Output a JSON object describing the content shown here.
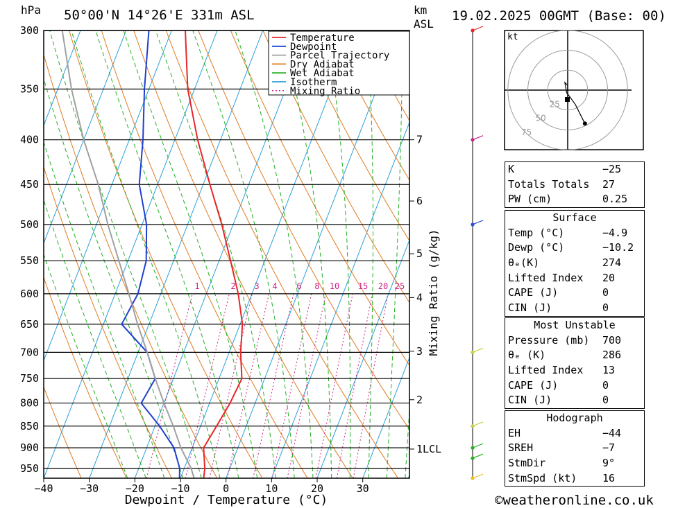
{
  "header": {
    "hpa_label": "hPa",
    "location": "50°00'N  14°26'E  331m  ASL",
    "km_label": "km",
    "asl_label": "ASL",
    "datetime": "19.02.2025  00GMT  (Base: 00)"
  },
  "legend": [
    {
      "label": "Temperature",
      "color": "#e8262a"
    },
    {
      "label": "Dewpoint",
      "color": "#1f3fd0"
    },
    {
      "label": "Parcel Trajectory",
      "color": "#a0a0a0"
    },
    {
      "label": "Dry Adiabat",
      "color": "#e07a20"
    },
    {
      "label": "Wet Adiabat",
      "color": "#22b022"
    },
    {
      "label": "Isotherm",
      "color": "#2a9fd8"
    },
    {
      "label": "Mixing Ratio",
      "color": "#d0208a"
    }
  ],
  "chart_data": {
    "type": "line",
    "title": "Skew-T log-P sounding",
    "xlabel": "Dewpoint / Temperature (°C)",
    "ylabel": "hPa",
    "secondary_ylabel": "Mixing Ratio (g/kg)",
    "pressure_levels": [
      300,
      350,
      400,
      450,
      500,
      550,
      600,
      650,
      700,
      750,
      800,
      850,
      900,
      950
    ],
    "x_ticks": [
      -40,
      -30,
      -20,
      -10,
      0,
      10,
      20,
      30
    ],
    "xlim": [
      -40,
      40
    ],
    "ylim": [
      975,
      300
    ],
    "km_ticks": [
      {
        "label": "7",
        "p": 400
      },
      {
        "label": "6",
        "p": 470
      },
      {
        "label": "5",
        "p": 540
      },
      {
        "label": "4",
        "p": 606
      },
      {
        "label": "3",
        "p": 698
      },
      {
        "label": "2",
        "p": 793
      },
      {
        "label": "1LCL",
        "p": 903
      }
    ],
    "mixing_ratio_labels": [
      "1",
      "2",
      "3",
      "4",
      "6",
      "8",
      "10",
      "15",
      "20",
      "25"
    ],
    "mixing_ratio_values": [
      1,
      2,
      3,
      4,
      6,
      8,
      10,
      15,
      20,
      25
    ],
    "series": [
      {
        "name": "Temperature",
        "points": [
          [
            975,
            -4.9
          ],
          [
            950,
            -5.5
          ],
          [
            900,
            -7.5
          ],
          [
            850,
            -6.5
          ],
          [
            800,
            -5.5
          ],
          [
            750,
            -5
          ],
          [
            700,
            -7.5
          ],
          [
            650,
            -9.5
          ],
          [
            600,
            -13
          ],
          [
            550,
            -17.5
          ],
          [
            500,
            -22.5
          ],
          [
            450,
            -28.5
          ],
          [
            400,
            -35
          ],
          [
            350,
            -41.5
          ],
          [
            300,
            -47
          ]
        ]
      },
      {
        "name": "Dewpoint",
        "points": [
          [
            975,
            -10.2
          ],
          [
            950,
            -11
          ],
          [
            900,
            -14
          ],
          [
            850,
            -19
          ],
          [
            800,
            -25
          ],
          [
            750,
            -24
          ],
          [
            700,
            -28
          ],
          [
            650,
            -36
          ],
          [
            600,
            -35
          ],
          [
            550,
            -36
          ],
          [
            500,
            -39
          ],
          [
            450,
            -44
          ],
          [
            400,
            -47
          ],
          [
            350,
            -51
          ],
          [
            300,
            -55
          ]
        ]
      },
      {
        "name": "Parcel Trajectory",
        "points": [
          [
            975,
            -7
          ],
          [
            950,
            -8.5
          ],
          [
            900,
            -12.5
          ],
          [
            850,
            -16
          ],
          [
            800,
            -20
          ],
          [
            750,
            -24
          ],
          [
            700,
            -28
          ],
          [
            650,
            -32.5
          ],
          [
            600,
            -37
          ],
          [
            550,
            -42
          ],
          [
            500,
            -47.5
          ],
          [
            450,
            -53
          ],
          [
            400,
            -60
          ],
          [
            350,
            -67
          ],
          [
            300,
            -74
          ]
        ]
      }
    ]
  },
  "hodograph": {
    "unit_label": "kt",
    "ring_labels": [
      "25",
      "50",
      "75"
    ],
    "ring_values": [
      25,
      50,
      75
    ],
    "points": [
      [
        0,
        0
      ],
      [
        0,
        5
      ],
      [
        -3,
        8
      ],
      [
        -1,
        -3
      ],
      [
        0,
        -4
      ],
      [
        8,
        -15
      ],
      [
        18,
        -35
      ]
    ]
  },
  "wind_profile": {
    "levels": [
      {
        "p": 300,
        "color": "#e8262a"
      },
      {
        "p": 400,
        "color": "#d0208a"
      },
      {
        "p": 500,
        "color": "#2a4fd8"
      },
      {
        "p": 700,
        "color": "#c8d040"
      },
      {
        "p": 850,
        "color": "#c8d040"
      },
      {
        "p": 900,
        "color": "#22b022"
      },
      {
        "p": 925,
        "color": "#22b022"
      },
      {
        "p": 975,
        "color": "#e8c020"
      }
    ]
  },
  "indices": {
    "k_label": "K",
    "k_value": "-25",
    "tt_label": "Totals Totals",
    "tt_value": "27",
    "pw_label": "PW (cm)",
    "pw_value": "0.25"
  },
  "surface": {
    "title": "Surface",
    "rows": [
      {
        "label": "Temp (°C)",
        "value": "-4.9"
      },
      {
        "label": "Dewp (°C)",
        "value": "-10.2"
      },
      {
        "label": "θE(K)",
        "value": "274"
      },
      {
        "label": "Lifted Index",
        "value": "20"
      },
      {
        "label": "CAPE (J)",
        "value": "0"
      },
      {
        "label": "CIN (J)",
        "value": "0"
      }
    ]
  },
  "most_unstable": {
    "title": "Most Unstable",
    "rows": [
      {
        "label": "Pressure (mb)",
        "value": "700"
      },
      {
        "label": "θE (K)",
        "value": "286"
      },
      {
        "label": "Lifted Index",
        "value": "13"
      },
      {
        "label": "CAPE (J)",
        "value": "0"
      },
      {
        "label": "CIN (J)",
        "value": "0"
      }
    ]
  },
  "hodograph_table": {
    "title": "Hodograph",
    "rows": [
      {
        "label": "EH",
        "value": "-44"
      },
      {
        "label": "SREH",
        "value": "-7"
      },
      {
        "label": "StmDir",
        "value": "9°"
      },
      {
        "label": "StmSpd (kt)",
        "value": "16"
      }
    ]
  },
  "footer": {
    "copyright": "©weatheronline.co.uk"
  }
}
